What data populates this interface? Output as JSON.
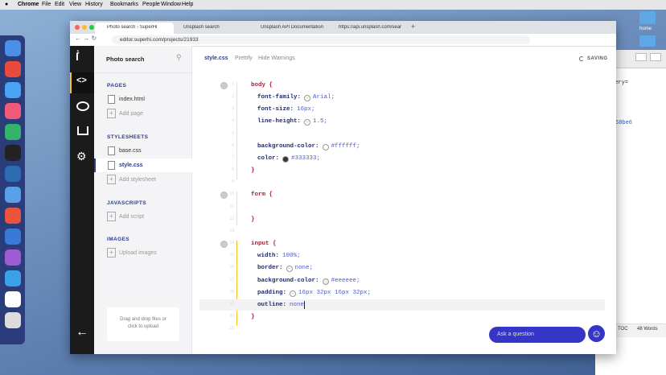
{
  "menubar": {
    "app": "Chrome",
    "items": [
      "File",
      "Edit",
      "View",
      "History",
      "Bookmarks",
      "People",
      "Window",
      "Help"
    ]
  },
  "desktop": {
    "folder": "home"
  },
  "browser": {
    "tabs": [
      "Photo search - SuperHi",
      "Unsplash search",
      "Unsplash API Documentation | ...",
      "https://api.unsplash.com/sear..."
    ],
    "url": "editor.superhi.com/projects/21933"
  },
  "sidebar": {
    "project": "Photo search",
    "sections": [
      {
        "title": "PAGES",
        "files": [
          "index.html"
        ],
        "add": "Add page"
      },
      {
        "title": "STYLESHEETS",
        "files": [
          "base.css",
          "style.css"
        ],
        "add": "Add stylesheet"
      },
      {
        "title": "JAVASCRIPTS",
        "files": [],
        "add": "Add script"
      },
      {
        "title": "IMAGES",
        "files": [],
        "add": "Upload images"
      }
    ],
    "dropzone": "Drag and drop files or click to upload"
  },
  "editor": {
    "file": "style.css",
    "actions": [
      "Prettify",
      "Hide Warnings"
    ],
    "status": "SAVING",
    "lines": [
      {
        "number": 1,
        "selector": "body {",
        "fold": true
      },
      {
        "number": 2,
        "property": "font-family:",
        "value": "Arial;",
        "swatch": "toggle"
      },
      {
        "number": 3,
        "property": "font-size:",
        "value": "16px;"
      },
      {
        "number": 4,
        "property": "line-height:",
        "value": "1.5;",
        "swatch": "toggle"
      },
      {
        "number": 5
      },
      {
        "number": 6,
        "property": "background-color:",
        "value": "#ffffff;",
        "swatch": "#ffffff"
      },
      {
        "number": 7,
        "property": "color:",
        "value": "#333333;",
        "swatch": "#333333"
      },
      {
        "number": 8,
        "selector": "}"
      },
      {
        "number": 9
      },
      {
        "number": 10,
        "selector": "form {",
        "fold": true
      },
      {
        "number": 11
      },
      {
        "number": 12,
        "selector": "}"
      },
      {
        "number": 13
      },
      {
        "number": 14,
        "selector": "input {",
        "fold": true
      },
      {
        "number": 15,
        "property": "width:",
        "value": "100%;"
      },
      {
        "number": 16,
        "property": "border:",
        "value": "none;",
        "swatch": "toggle"
      },
      {
        "number": 17,
        "property": "background-color:",
        "value": "#eeeeee;",
        "swatch": "#eeeeee"
      },
      {
        "number": 18,
        "property": "padding:",
        "value": "16px 32px 16px 32px;",
        "swatch": "toggle"
      },
      {
        "number": 19,
        "property": "outline:",
        "value": "none",
        "active": true
      },
      {
        "number": 20,
        "selector": "}"
      },
      {
        "number": 21
      }
    ]
  },
  "help": {
    "button": "Ask a question"
  },
  "background_window": {
    "snippets": [
      "uery=",
      "68be6"
    ],
    "status": [
      "TOC",
      "48 Words"
    ]
  }
}
